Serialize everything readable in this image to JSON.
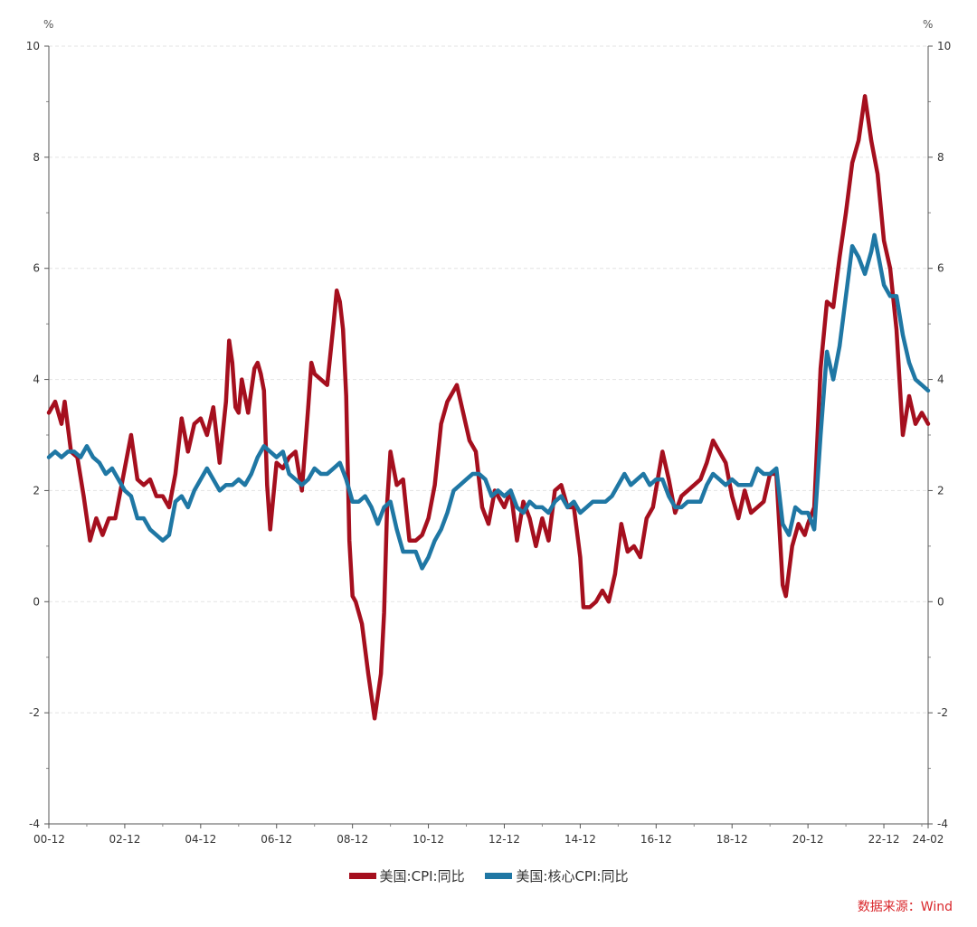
{
  "chart_data": {
    "type": "line",
    "left_unit": "%",
    "right_unit": "%",
    "ylim": [
      -4,
      10
    ],
    "yticks": [
      -4,
      -2,
      0,
      2,
      4,
      6,
      8,
      10
    ],
    "xlim": [
      "2000-12",
      "2024-02"
    ],
    "xticks": [
      "00-12",
      "02-12",
      "04-12",
      "06-12",
      "08-12",
      "10-12",
      "12-12",
      "14-12",
      "16-12",
      "18-12",
      "20-12",
      "22-12",
      "24-02"
    ],
    "series": [
      {
        "name": "美国:CPI:同比",
        "color": "#a50f1e",
        "points": [
          [
            "2000-12",
            3.4
          ],
          [
            "2001-02",
            3.6
          ],
          [
            "2001-04",
            3.2
          ],
          [
            "2001-05",
            3.6
          ],
          [
            "2001-07",
            2.7
          ],
          [
            "2001-09",
            2.6
          ],
          [
            "2001-11",
            1.9
          ],
          [
            "2002-01",
            1.1
          ],
          [
            "2002-03",
            1.5
          ],
          [
            "2002-05",
            1.2
          ],
          [
            "2002-07",
            1.5
          ],
          [
            "2002-09",
            1.5
          ],
          [
            "2002-12",
            2.4
          ],
          [
            "2003-02",
            3.0
          ],
          [
            "2003-04",
            2.2
          ],
          [
            "2003-06",
            2.1
          ],
          [
            "2003-08",
            2.2
          ],
          [
            "2003-10",
            1.9
          ],
          [
            "2003-12",
            1.9
          ],
          [
            "2004-02",
            1.7
          ],
          [
            "2004-04",
            2.3
          ],
          [
            "2004-06",
            3.3
          ],
          [
            "2004-08",
            2.7
          ],
          [
            "2004-10",
            3.2
          ],
          [
            "2004-12",
            3.3
          ],
          [
            "2005-02",
            3.0
          ],
          [
            "2005-04",
            3.5
          ],
          [
            "2005-06",
            2.5
          ],
          [
            "2005-08",
            3.6
          ],
          [
            "2005-09",
            4.7
          ],
          [
            "2005-10",
            4.3
          ],
          [
            "2005-11",
            3.5
          ],
          [
            "2005-12",
            3.4
          ],
          [
            "2006-01",
            4.0
          ],
          [
            "2006-03",
            3.4
          ],
          [
            "2006-05",
            4.2
          ],
          [
            "2006-06",
            4.3
          ],
          [
            "2006-07",
            4.1
          ],
          [
            "2006-08",
            3.8
          ],
          [
            "2006-09",
            2.1
          ],
          [
            "2006-10",
            1.3
          ],
          [
            "2006-12",
            2.5
          ],
          [
            "2007-02",
            2.4
          ],
          [
            "2007-04",
            2.6
          ],
          [
            "2007-06",
            2.7
          ],
          [
            "2007-08",
            2.0
          ],
          [
            "2007-10",
            3.5
          ],
          [
            "2007-11",
            4.3
          ],
          [
            "2007-12",
            4.1
          ],
          [
            "2008-02",
            4.0
          ],
          [
            "2008-04",
            3.9
          ],
          [
            "2008-06",
            5.0
          ],
          [
            "2008-07",
            5.6
          ],
          [
            "2008-08",
            5.4
          ],
          [
            "2008-09",
            4.9
          ],
          [
            "2008-10",
            3.7
          ],
          [
            "2008-11",
            1.1
          ],
          [
            "2008-12",
            0.1
          ],
          [
            "2009-01",
            0.0
          ],
          [
            "2009-03",
            -0.4
          ],
          [
            "2009-05",
            -1.3
          ],
          [
            "2009-07",
            -2.1
          ],
          [
            "2009-09",
            -1.3
          ],
          [
            "2009-10",
            -0.2
          ],
          [
            "2009-11",
            1.8
          ],
          [
            "2009-12",
            2.7
          ],
          [
            "2010-02",
            2.1
          ],
          [
            "2010-04",
            2.2
          ],
          [
            "2010-06",
            1.1
          ],
          [
            "2010-08",
            1.1
          ],
          [
            "2010-10",
            1.2
          ],
          [
            "2010-12",
            1.5
          ],
          [
            "2011-02",
            2.1
          ],
          [
            "2011-04",
            3.2
          ],
          [
            "2011-06",
            3.6
          ],
          [
            "2011-09",
            3.9
          ],
          [
            "2011-11",
            3.4
          ],
          [
            "2012-01",
            2.9
          ],
          [
            "2012-03",
            2.7
          ],
          [
            "2012-05",
            1.7
          ],
          [
            "2012-07",
            1.4
          ],
          [
            "2012-09",
            2.0
          ],
          [
            "2012-12",
            1.7
          ],
          [
            "2013-02",
            2.0
          ],
          [
            "2013-04",
            1.1
          ],
          [
            "2013-06",
            1.8
          ],
          [
            "2013-08",
            1.5
          ],
          [
            "2013-10",
            1.0
          ],
          [
            "2013-12",
            1.5
          ],
          [
            "2014-02",
            1.1
          ],
          [
            "2014-04",
            2.0
          ],
          [
            "2014-06",
            2.1
          ],
          [
            "2014-08",
            1.7
          ],
          [
            "2014-10",
            1.7
          ],
          [
            "2014-12",
            0.8
          ],
          [
            "2015-01",
            -0.1
          ],
          [
            "2015-03",
            -0.1
          ],
          [
            "2015-05",
            0.0
          ],
          [
            "2015-07",
            0.2
          ],
          [
            "2015-09",
            0.0
          ],
          [
            "2015-11",
            0.5
          ],
          [
            "2016-01",
            1.4
          ],
          [
            "2016-03",
            0.9
          ],
          [
            "2016-05",
            1.0
          ],
          [
            "2016-07",
            0.8
          ],
          [
            "2016-09",
            1.5
          ],
          [
            "2016-11",
            1.7
          ],
          [
            "2017-02",
            2.7
          ],
          [
            "2017-04",
            2.2
          ],
          [
            "2017-06",
            1.6
          ],
          [
            "2017-08",
            1.9
          ],
          [
            "2017-10",
            2.0
          ],
          [
            "2017-12",
            2.1
          ],
          [
            "2018-02",
            2.2
          ],
          [
            "2018-04",
            2.5
          ],
          [
            "2018-06",
            2.9
          ],
          [
            "2018-08",
            2.7
          ],
          [
            "2018-10",
            2.5
          ],
          [
            "2018-12",
            1.9
          ],
          [
            "2019-02",
            1.5
          ],
          [
            "2019-04",
            2.0
          ],
          [
            "2019-06",
            1.6
          ],
          [
            "2019-08",
            1.7
          ],
          [
            "2019-10",
            1.8
          ],
          [
            "2019-12",
            2.3
          ],
          [
            "2020-02",
            2.3
          ],
          [
            "2020-04",
            0.3
          ],
          [
            "2020-05",
            0.1
          ],
          [
            "2020-07",
            1.0
          ],
          [
            "2020-09",
            1.4
          ],
          [
            "2020-11",
            1.2
          ],
          [
            "2020-12",
            1.4
          ],
          [
            "2021-02",
            1.7
          ],
          [
            "2021-04",
            4.2
          ],
          [
            "2021-06",
            5.4
          ],
          [
            "2021-08",
            5.3
          ],
          [
            "2021-10",
            6.2
          ],
          [
            "2021-12",
            7.0
          ],
          [
            "2022-02",
            7.9
          ],
          [
            "2022-04",
            8.3
          ],
          [
            "2022-06",
            9.1
          ],
          [
            "2022-08",
            8.3
          ],
          [
            "2022-10",
            7.7
          ],
          [
            "2022-12",
            6.5
          ],
          [
            "2023-02",
            6.0
          ],
          [
            "2023-04",
            4.9
          ],
          [
            "2023-06",
            3.0
          ],
          [
            "2023-08",
            3.7
          ],
          [
            "2023-10",
            3.2
          ],
          [
            "2023-12",
            3.4
          ],
          [
            "2024-02",
            3.2
          ]
        ]
      },
      {
        "name": "美国:核心CPI:同比",
        "color": "#1f77a4",
        "points": [
          [
            "2000-12",
            2.6
          ],
          [
            "2001-02",
            2.7
          ],
          [
            "2001-04",
            2.6
          ],
          [
            "2001-06",
            2.7
          ],
          [
            "2001-08",
            2.7
          ],
          [
            "2001-10",
            2.6
          ],
          [
            "2001-12",
            2.8
          ],
          [
            "2002-02",
            2.6
          ],
          [
            "2002-04",
            2.5
          ],
          [
            "2002-06",
            2.3
          ],
          [
            "2002-08",
            2.4
          ],
          [
            "2002-10",
            2.2
          ],
          [
            "2002-12",
            2.0
          ],
          [
            "2003-02",
            1.9
          ],
          [
            "2003-04",
            1.5
          ],
          [
            "2003-06",
            1.5
          ],
          [
            "2003-08",
            1.3
          ],
          [
            "2003-10",
            1.2
          ],
          [
            "2003-12",
            1.1
          ],
          [
            "2004-02",
            1.2
          ],
          [
            "2004-04",
            1.8
          ],
          [
            "2004-06",
            1.9
          ],
          [
            "2004-08",
            1.7
          ],
          [
            "2004-10",
            2.0
          ],
          [
            "2004-12",
            2.2
          ],
          [
            "2005-02",
            2.4
          ],
          [
            "2005-04",
            2.2
          ],
          [
            "2005-06",
            2.0
          ],
          [
            "2005-08",
            2.1
          ],
          [
            "2005-10",
            2.1
          ],
          [
            "2005-12",
            2.2
          ],
          [
            "2006-02",
            2.1
          ],
          [
            "2006-04",
            2.3
          ],
          [
            "2006-06",
            2.6
          ],
          [
            "2006-08",
            2.8
          ],
          [
            "2006-10",
            2.7
          ],
          [
            "2006-12",
            2.6
          ],
          [
            "2007-02",
            2.7
          ],
          [
            "2007-04",
            2.3
          ],
          [
            "2007-06",
            2.2
          ],
          [
            "2007-08",
            2.1
          ],
          [
            "2007-10",
            2.2
          ],
          [
            "2007-12",
            2.4
          ],
          [
            "2008-02",
            2.3
          ],
          [
            "2008-04",
            2.3
          ],
          [
            "2008-06",
            2.4
          ],
          [
            "2008-08",
            2.5
          ],
          [
            "2008-10",
            2.2
          ],
          [
            "2008-12",
            1.8
          ],
          [
            "2009-02",
            1.8
          ],
          [
            "2009-04",
            1.9
          ],
          [
            "2009-06",
            1.7
          ],
          [
            "2009-08",
            1.4
          ],
          [
            "2009-10",
            1.7
          ],
          [
            "2009-12",
            1.8
          ],
          [
            "2010-02",
            1.3
          ],
          [
            "2010-04",
            0.9
          ],
          [
            "2010-06",
            0.9
          ],
          [
            "2010-08",
            0.9
          ],
          [
            "2010-10",
            0.6
          ],
          [
            "2010-12",
            0.8
          ],
          [
            "2011-02",
            1.1
          ],
          [
            "2011-04",
            1.3
          ],
          [
            "2011-06",
            1.6
          ],
          [
            "2011-08",
            2.0
          ],
          [
            "2011-10",
            2.1
          ],
          [
            "2011-12",
            2.2
          ],
          [
            "2012-02",
            2.3
          ],
          [
            "2012-04",
            2.3
          ],
          [
            "2012-06",
            2.2
          ],
          [
            "2012-08",
            1.9
          ],
          [
            "2012-10",
            2.0
          ],
          [
            "2012-12",
            1.9
          ],
          [
            "2013-02",
            2.0
          ],
          [
            "2013-04",
            1.7
          ],
          [
            "2013-06",
            1.6
          ],
          [
            "2013-08",
            1.8
          ],
          [
            "2013-10",
            1.7
          ],
          [
            "2013-12",
            1.7
          ],
          [
            "2014-02",
            1.6
          ],
          [
            "2014-04",
            1.8
          ],
          [
            "2014-06",
            1.9
          ],
          [
            "2014-08",
            1.7
          ],
          [
            "2014-10",
            1.8
          ],
          [
            "2014-12",
            1.6
          ],
          [
            "2015-02",
            1.7
          ],
          [
            "2015-04",
            1.8
          ],
          [
            "2015-06",
            1.8
          ],
          [
            "2015-08",
            1.8
          ],
          [
            "2015-10",
            1.9
          ],
          [
            "2015-12",
            2.1
          ],
          [
            "2016-02",
            2.3
          ],
          [
            "2016-04",
            2.1
          ],
          [
            "2016-06",
            2.2
          ],
          [
            "2016-08",
            2.3
          ],
          [
            "2016-10",
            2.1
          ],
          [
            "2016-12",
            2.2
          ],
          [
            "2017-02",
            2.2
          ],
          [
            "2017-04",
            1.9
          ],
          [
            "2017-06",
            1.7
          ],
          [
            "2017-08",
            1.7
          ],
          [
            "2017-10",
            1.8
          ],
          [
            "2017-12",
            1.8
          ],
          [
            "2018-02",
            1.8
          ],
          [
            "2018-04",
            2.1
          ],
          [
            "2018-06",
            2.3
          ],
          [
            "2018-08",
            2.2
          ],
          [
            "2018-10",
            2.1
          ],
          [
            "2018-12",
            2.2
          ],
          [
            "2019-02",
            2.1
          ],
          [
            "2019-04",
            2.1
          ],
          [
            "2019-06",
            2.1
          ],
          [
            "2019-08",
            2.4
          ],
          [
            "2019-10",
            2.3
          ],
          [
            "2019-12",
            2.3
          ],
          [
            "2020-02",
            2.4
          ],
          [
            "2020-04",
            1.4
          ],
          [
            "2020-06",
            1.2
          ],
          [
            "2020-08",
            1.7
          ],
          [
            "2020-10",
            1.6
          ],
          [
            "2020-12",
            1.6
          ],
          [
            "2021-02",
            1.3
          ],
          [
            "2021-04",
            3.0
          ],
          [
            "2021-06",
            4.5
          ],
          [
            "2021-08",
            4.0
          ],
          [
            "2021-10",
            4.6
          ],
          [
            "2021-12",
            5.5
          ],
          [
            "2022-02",
            6.4
          ],
          [
            "2022-04",
            6.2
          ],
          [
            "2022-06",
            5.9
          ],
          [
            "2022-08",
            6.3
          ],
          [
            "2022-09",
            6.6
          ],
          [
            "2022-10",
            6.3
          ],
          [
            "2022-12",
            5.7
          ],
          [
            "2023-02",
            5.5
          ],
          [
            "2023-04",
            5.5
          ],
          [
            "2023-06",
            4.8
          ],
          [
            "2023-08",
            4.3
          ],
          [
            "2023-10",
            4.0
          ],
          [
            "2023-12",
            3.9
          ],
          [
            "2024-02",
            3.8
          ]
        ]
      }
    ]
  },
  "legend": {
    "items": [
      {
        "label": "美国:CPI:同比",
        "color": "#a50f1e"
      },
      {
        "label": "美国:核心CPI:同比",
        "color": "#1f77a4"
      }
    ]
  },
  "source": "数据来源：Wind"
}
